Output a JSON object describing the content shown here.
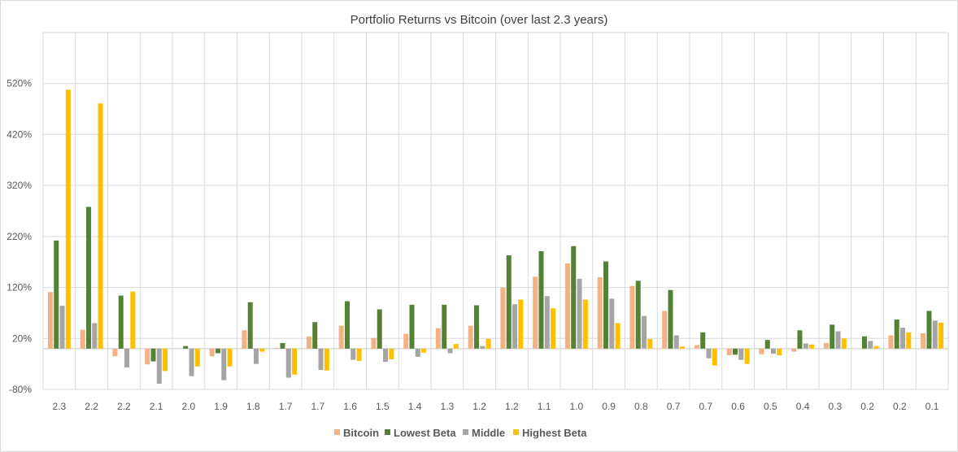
{
  "chart_data": {
    "type": "bar",
    "title": "Portfolio Returns vs Bitcoin (over last 2.3 years)",
    "xlabel": "",
    "ylabel": "",
    "ylim": [
      -80,
      620
    ],
    "yticks": [
      -80,
      20,
      120,
      220,
      320,
      420,
      520
    ],
    "ytick_labels": [
      "-80%",
      "20%",
      "120%",
      "220%",
      "320%",
      "420%",
      "520%"
    ],
    "grid": true,
    "legend": "bottom",
    "categories": [
      "2.3",
      "2.2",
      "2.2",
      "2.1",
      "2.0",
      "1.9",
      "1.8",
      "1.7",
      "1.7",
      "1.6",
      "1.5",
      "1.4",
      "1.3",
      "1.2",
      "1.2",
      "1.1",
      "1.0",
      "0.9",
      "0.8",
      "0.7",
      "0.7",
      "0.6",
      "0.5",
      "0.4",
      "0.3",
      "0.2",
      "0.2",
      "0.1"
    ],
    "series": [
      {
        "name": "Bitcoin",
        "color": "#F4B183",
        "values": [
          111,
          37,
          -15,
          -31,
          0,
          -15,
          36,
          1,
          24,
          45,
          21,
          29,
          40,
          45,
          120,
          141,
          167,
          140,
          123,
          74,
          7,
          -13,
          -11,
          -6,
          11,
          0,
          26,
          30
        ]
      },
      {
        "name": "Lowest Beta",
        "color": "#548235",
        "values": [
          212,
          278,
          104,
          -25,
          5,
          -9,
          91,
          11,
          52,
          93,
          77,
          86,
          86,
          85,
          183,
          191,
          201,
          171,
          133,
          115,
          32,
          -12,
          17,
          36,
          47,
          24,
          57,
          74
        ]
      },
      {
        "name": "Middle",
        "color": "#A5A5A5",
        "values": [
          84,
          50,
          -37,
          -69,
          -54,
          -62,
          -30,
          -57,
          -42,
          -22,
          -26,
          -16,
          -9,
          5,
          87,
          103,
          137,
          98,
          64,
          26,
          -19,
          -22,
          -10,
          10,
          34,
          15,
          41,
          55
        ]
      },
      {
        "name": "Highest Beta",
        "color": "#FFC000",
        "values": [
          508,
          481,
          112,
          -44,
          -35,
          -35,
          -6,
          -51,
          -43,
          -24,
          -21,
          -8,
          9,
          19,
          96,
          79,
          96,
          50,
          19,
          4,
          -33,
          -30,
          -13,
          8,
          20,
          5,
          32,
          51
        ]
      }
    ]
  }
}
